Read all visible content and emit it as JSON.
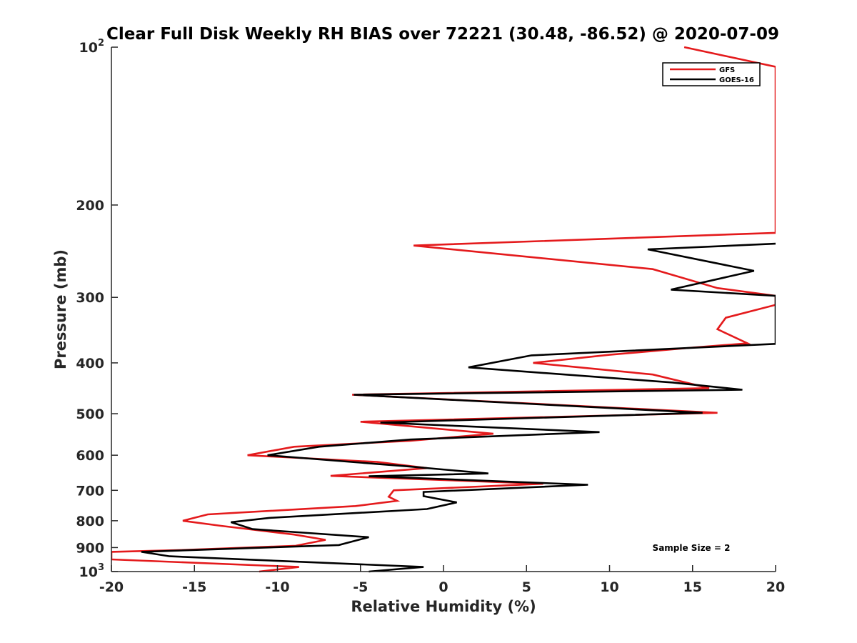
{
  "chart_data": {
    "type": "line",
    "title": "Clear Full Disk Weekly RH BIAS over 72221 (30.48, -86.52) @ 2020-07-09",
    "xlabel": "Relative Humidity (%)",
    "ylabel": "Pressure (mb)",
    "xlim": [
      -20,
      20
    ],
    "ylim": [
      100,
      1000
    ],
    "y_scale": "log",
    "y_reversed": true,
    "grid": false,
    "legend_position": "top-right",
    "x_ticks": [
      {
        "value": -20,
        "label": "-20"
      },
      {
        "value": -15,
        "label": "-15"
      },
      {
        "value": -10,
        "label": "-10"
      },
      {
        "value": -5,
        "label": "-5"
      },
      {
        "value": 0,
        "label": "0"
      },
      {
        "value": 5,
        "label": "5"
      },
      {
        "value": 10,
        "label": "10"
      },
      {
        "value": 15,
        "label": "15"
      },
      {
        "value": 20,
        "label": "20"
      }
    ],
    "y_ticks": [
      {
        "value": 100,
        "base": "10",
        "exp": "2"
      },
      {
        "value": 200,
        "base": "200",
        "exp": ""
      },
      {
        "value": 300,
        "base": "300",
        "exp": ""
      },
      {
        "value": 400,
        "base": "400",
        "exp": ""
      },
      {
        "value": 500,
        "base": "500",
        "exp": ""
      },
      {
        "value": 600,
        "base": "600",
        "exp": ""
      },
      {
        "value": 700,
        "base": "700",
        "exp": ""
      },
      {
        "value": 800,
        "base": "800",
        "exp": ""
      },
      {
        "value": 900,
        "base": "900",
        "exp": ""
      },
      {
        "value": 1000,
        "base": "10",
        "exp": "3"
      }
    ],
    "annotation": "Sample Size = 2",
    "series": [
      {
        "name": "GFS",
        "color": "#e41a1c",
        "points": [
          [
            14.5,
            100
          ],
          [
            20,
            109
          ],
          [
            20,
            226
          ],
          [
            -1.8,
            239
          ],
          [
            12.6,
            265
          ],
          [
            16.5,
            288
          ],
          [
            20,
            298
          ],
          [
            20,
            310
          ],
          [
            17,
            328
          ],
          [
            16.5,
            345
          ],
          [
            18.3,
            367
          ],
          [
            15,
            374
          ],
          [
            10,
            386
          ],
          [
            5.4,
            400
          ],
          [
            12.6,
            421
          ],
          [
            16,
            447
          ],
          [
            -5.5,
            460
          ],
          [
            16.5,
            498
          ],
          [
            -5,
            518
          ],
          [
            3,
            546
          ],
          [
            -2,
            563
          ],
          [
            -9,
            578
          ],
          [
            -11.8,
            600
          ],
          [
            -4,
            618
          ],
          [
            -1,
            635
          ],
          [
            -6.8,
            657
          ],
          [
            6,
            680
          ],
          [
            -3,
            700
          ],
          [
            -3.3,
            720
          ],
          [
            -2.8,
            733
          ],
          [
            -5.3,
            750
          ],
          [
            -14.2,
            778
          ],
          [
            -15.7,
            800
          ],
          [
            -13.4,
            818
          ],
          [
            -9,
            850
          ],
          [
            -7.1,
            870
          ],
          [
            -8.9,
            893
          ],
          [
            -15.8,
            910
          ],
          [
            -20,
            917
          ],
          [
            -20,
            948
          ],
          [
            -8.7,
            980
          ],
          [
            -11.1,
            1000
          ]
        ]
      },
      {
        "name": "GOES-16",
        "color": "#000000",
        "points": [
          [
            20,
            237
          ],
          [
            12.3,
            243
          ],
          [
            18.7,
            267
          ],
          [
            13.7,
            290
          ],
          [
            20,
            298
          ],
          [
            20,
            368
          ],
          [
            5.3,
            387
          ],
          [
            1.5,
            408
          ],
          [
            13.8,
            436
          ],
          [
            18,
            450
          ],
          [
            -5.4,
            460
          ],
          [
            15.6,
            498
          ],
          [
            -3.8,
            520
          ],
          [
            9.4,
            542
          ],
          [
            -2,
            560
          ],
          [
            -7.5,
            578
          ],
          [
            -10.6,
            600
          ],
          [
            -2.2,
            630
          ],
          [
            2.7,
            650
          ],
          [
            -4.5,
            658
          ],
          [
            8.7,
            683
          ],
          [
            -1.2,
            705
          ],
          [
            -1.2,
            718
          ],
          [
            0.8,
            738
          ],
          [
            -1,
            760
          ],
          [
            -10.5,
            790
          ],
          [
            -12.8,
            805
          ],
          [
            -11.5,
            830
          ],
          [
            -4.5,
            860
          ],
          [
            -6.3,
            890
          ],
          [
            -18.2,
            917
          ],
          [
            -16.5,
            935
          ],
          [
            -1.2,
            980
          ],
          [
            -4.5,
            1000
          ]
        ]
      }
    ]
  }
}
